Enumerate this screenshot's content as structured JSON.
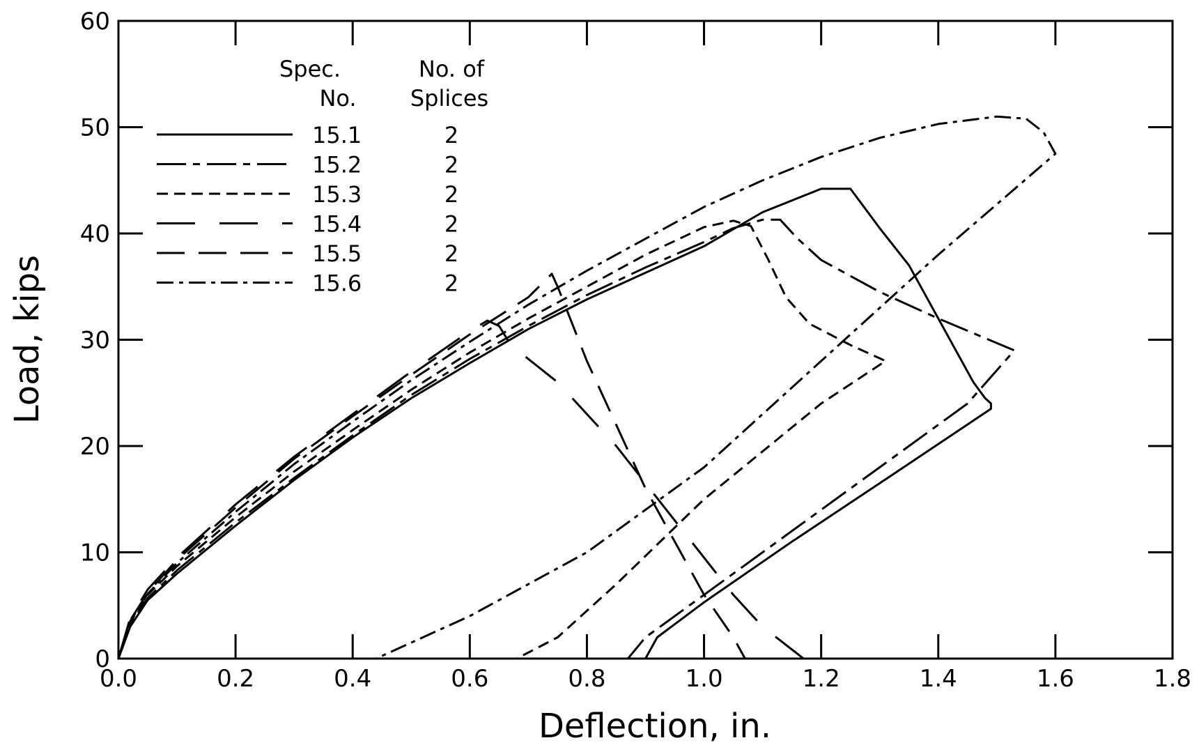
{
  "chart_data": {
    "type": "line",
    "title": "",
    "xlabel": "Deflection, in.",
    "ylabel": "Load, kips",
    "xlim": [
      0,
      1.8
    ],
    "ylim": [
      0,
      60
    ],
    "xticks": [
      0,
      0.2,
      0.4,
      0.6,
      0.8,
      1.0,
      1.2,
      1.4,
      1.6,
      1.8
    ],
    "xtick_labels": [
      "0.0",
      "0.2",
      "0.4",
      "0.6",
      "0.8",
      "1.0",
      "1.2",
      "1.4",
      "1.6",
      "1.8"
    ],
    "yticks": [
      0,
      10,
      20,
      30,
      40,
      50,
      60
    ],
    "ytick_labels": [
      "0",
      "10",
      "20",
      "30",
      "40",
      "50",
      "60"
    ],
    "grid": false,
    "legend": {
      "placement": "top-left",
      "header_spec_1": "Spec.",
      "header_spec_2": "No.",
      "header_splices_1": "No.  of",
      "header_splices_2": "Splices"
    },
    "series": [
      {
        "name": "15.1",
        "splices": "2",
        "dash": "solid",
        "points": [
          [
            0,
            0
          ],
          [
            0.02,
            3
          ],
          [
            0.05,
            5.5
          ],
          [
            0.1,
            8
          ],
          [
            0.2,
            12.5
          ],
          [
            0.3,
            16.8
          ],
          [
            0.4,
            20.8
          ],
          [
            0.5,
            24.5
          ],
          [
            0.6,
            27.8
          ],
          [
            0.7,
            31
          ],
          [
            0.8,
            33.8
          ],
          [
            0.9,
            36.3
          ],
          [
            1.0,
            38.8
          ],
          [
            1.1,
            42
          ],
          [
            1.2,
            44.2
          ],
          [
            1.25,
            44.2
          ],
          [
            1.3,
            40.5
          ],
          [
            1.35,
            37
          ],
          [
            1.4,
            32
          ],
          [
            1.43,
            29
          ],
          [
            1.46,
            26
          ],
          [
            1.48,
            24.5
          ],
          [
            1.49,
            24
          ],
          [
            1.49,
            23.5
          ],
          [
            1.3,
            16.5
          ],
          [
            1.15,
            11
          ],
          [
            1.0,
            5.3
          ],
          [
            0.92,
            2
          ],
          [
            0.9,
            0
          ]
        ]
      },
      {
        "name": "15.2",
        "splices": "2",
        "dash": "long-dash-dot",
        "points": [
          [
            0,
            0
          ],
          [
            0.02,
            3.2
          ],
          [
            0.05,
            5.7
          ],
          [
            0.1,
            8.3
          ],
          [
            0.2,
            12.8
          ],
          [
            0.3,
            17
          ],
          [
            0.4,
            21
          ],
          [
            0.5,
            24.8
          ],
          [
            0.6,
            28.2
          ],
          [
            0.7,
            31.3
          ],
          [
            0.8,
            34.2
          ],
          [
            0.9,
            36.8
          ],
          [
            1.0,
            39.2
          ],
          [
            1.05,
            40.5
          ],
          [
            1.1,
            41.3
          ],
          [
            1.13,
            41.3
          ],
          [
            1.16,
            39.5
          ],
          [
            1.2,
            37.5
          ],
          [
            1.3,
            34.5
          ],
          [
            1.4,
            32
          ],
          [
            1.53,
            29
          ],
          [
            1.45,
            24
          ],
          [
            1.3,
            18
          ],
          [
            1.15,
            12
          ],
          [
            1.0,
            6
          ],
          [
            0.9,
            2
          ],
          [
            0.87,
            0
          ]
        ]
      },
      {
        "name": "15.3",
        "splices": "2",
        "dash": "short-dash",
        "points": [
          [
            0,
            0
          ],
          [
            0.02,
            3.4
          ],
          [
            0.05,
            6
          ],
          [
            0.1,
            8.7
          ],
          [
            0.2,
            13.3
          ],
          [
            0.3,
            17.6
          ],
          [
            0.4,
            21.5
          ],
          [
            0.5,
            25.3
          ],
          [
            0.6,
            28.8
          ],
          [
            0.7,
            32
          ],
          [
            0.8,
            35
          ],
          [
            0.9,
            38
          ],
          [
            1.0,
            40.6
          ],
          [
            1.05,
            41.2
          ],
          [
            1.08,
            40.7
          ],
          [
            1.11,
            37.5
          ],
          [
            1.14,
            34
          ],
          [
            1.18,
            31.5
          ],
          [
            1.25,
            29.5
          ],
          [
            1.31,
            28
          ],
          [
            1.2,
            24
          ],
          [
            1.0,
            15
          ],
          [
            0.85,
            7
          ],
          [
            0.75,
            2
          ],
          [
            0.68,
            0
          ]
        ]
      },
      {
        "name": "15.4",
        "splices": "2",
        "dash": "long-dash-wide",
        "points": [
          [
            0,
            0
          ],
          [
            0.02,
            3.8
          ],
          [
            0.05,
            6.5
          ],
          [
            0.1,
            9.5
          ],
          [
            0.2,
            14.5
          ],
          [
            0.3,
            19
          ],
          [
            0.4,
            23
          ],
          [
            0.5,
            27
          ],
          [
            0.6,
            30.8
          ],
          [
            0.63,
            31.8
          ],
          [
            0.65,
            31.3
          ],
          [
            0.67,
            29.5
          ],
          [
            0.75,
            26
          ],
          [
            0.85,
            20
          ],
          [
            0.95,
            13
          ],
          [
            1.05,
            6
          ],
          [
            1.1,
            3
          ],
          [
            1.17,
            0
          ]
        ]
      },
      {
        "name": "15.5",
        "splices": "2",
        "dash": "long-dash",
        "points": [
          [
            0,
            0
          ],
          [
            0.02,
            3.6
          ],
          [
            0.05,
            6.2
          ],
          [
            0.1,
            9.3
          ],
          [
            0.2,
            14.2
          ],
          [
            0.3,
            18.8
          ],
          [
            0.4,
            22.8
          ],
          [
            0.5,
            26.7
          ],
          [
            0.6,
            30.5
          ],
          [
            0.7,
            34
          ],
          [
            0.74,
            36.2
          ],
          [
            0.75,
            35
          ],
          [
            0.8,
            28
          ],
          [
            0.9,
            16
          ],
          [
            1.0,
            6
          ],
          [
            1.05,
            2
          ],
          [
            1.07,
            0
          ]
        ]
      },
      {
        "name": "15.6",
        "splices": "2",
        "dash": "dash-dot",
        "points": [
          [
            0,
            0
          ],
          [
            0.02,
            3.5
          ],
          [
            0.05,
            6.1
          ],
          [
            0.1,
            9
          ],
          [
            0.2,
            13.8
          ],
          [
            0.3,
            18.3
          ],
          [
            0.4,
            22.3
          ],
          [
            0.5,
            26.2
          ],
          [
            0.6,
            29.8
          ],
          [
            0.7,
            33.3
          ],
          [
            0.8,
            36.5
          ],
          [
            0.9,
            39.5
          ],
          [
            1.0,
            42.5
          ],
          [
            1.1,
            45
          ],
          [
            1.2,
            47.2
          ],
          [
            1.3,
            49
          ],
          [
            1.4,
            50.3
          ],
          [
            1.5,
            51
          ],
          [
            1.55,
            50.8
          ],
          [
            1.58,
            49.5
          ],
          [
            1.6,
            47.5
          ],
          [
            1.4,
            38
          ],
          [
            1.2,
            28
          ],
          [
            1.0,
            18
          ],
          [
            0.8,
            10
          ],
          [
            0.6,
            4
          ],
          [
            0.44,
            0
          ]
        ]
      }
    ]
  }
}
